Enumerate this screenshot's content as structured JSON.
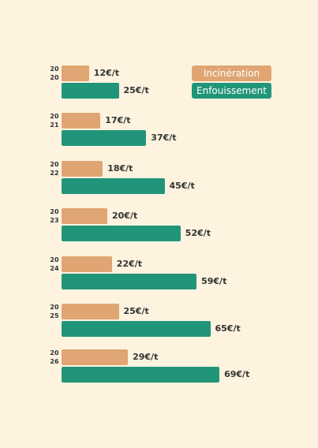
{
  "chart_data": {
    "type": "bar",
    "orientation": "horizontal",
    "categories": [
      "2020",
      "2021",
      "2022",
      "2023",
      "2024",
      "2025",
      "2026"
    ],
    "series": [
      {
        "name": "Incinération",
        "color": "#dfa572",
        "values": [
          12,
          17,
          18,
          20,
          22,
          25,
          29
        ],
        "labels": [
          "12€/t",
          "17€/t",
          "18€/t",
          "20€/t",
          "22€/t",
          "25€/t",
          "29€/t"
        ]
      },
      {
        "name": "Enfouissement",
        "color": "#21957a",
        "values": [
          25,
          37,
          45,
          52,
          59,
          65,
          69
        ],
        "labels": [
          "25€/t",
          "37€/t",
          "45€/t",
          "52€/t",
          "59€/t",
          "65€/t",
          "69€/t"
        ]
      }
    ],
    "legend_position": "top-right",
    "grid": false
  }
}
